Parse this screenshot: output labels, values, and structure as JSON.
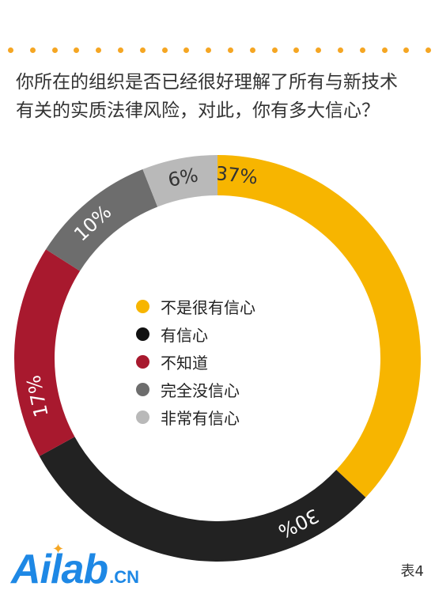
{
  "question": {
    "line1": "你所在的组织是否已经很好理解了所有与新技术",
    "line2": "有关的实质法律风险，对此，你有多大信心？"
  },
  "chart_data": {
    "type": "pie",
    "donut": true,
    "categories": [
      "不是很有信心",
      "有信心",
      "不知道",
      "完全没信心",
      "非常有信心"
    ],
    "values": [
      37,
      30,
      17,
      10,
      6
    ],
    "value_labels": [
      "37%",
      "30%",
      "17%",
      "10%",
      "6%"
    ],
    "colors": [
      "#f7b500",
      "#222222",
      "#a8192e",
      "#6d6d6d",
      "#b9b9b9"
    ],
    "label_colors": [
      "#333333",
      "#ffffff",
      "#ffffff",
      "#ffffff",
      "#333333"
    ],
    "start": "12 o'clock",
    "direction": "clockwise"
  },
  "legend": [
    {
      "label": "不是很有信心",
      "color": "#f7b500"
    },
    {
      "label": "有信心",
      "color": "#111111"
    },
    {
      "label": "不知道",
      "color": "#a8192e"
    },
    {
      "label": "完全没信心",
      "color": "#6d6d6d"
    },
    {
      "label": "非常有信心",
      "color": "#b9b9b9"
    }
  ],
  "logo": {
    "main": "Ailab",
    "suffix": ".CN",
    "icon": "star-icon"
  },
  "table_label": "表4",
  "accent_dot_color": "#f5a623"
}
